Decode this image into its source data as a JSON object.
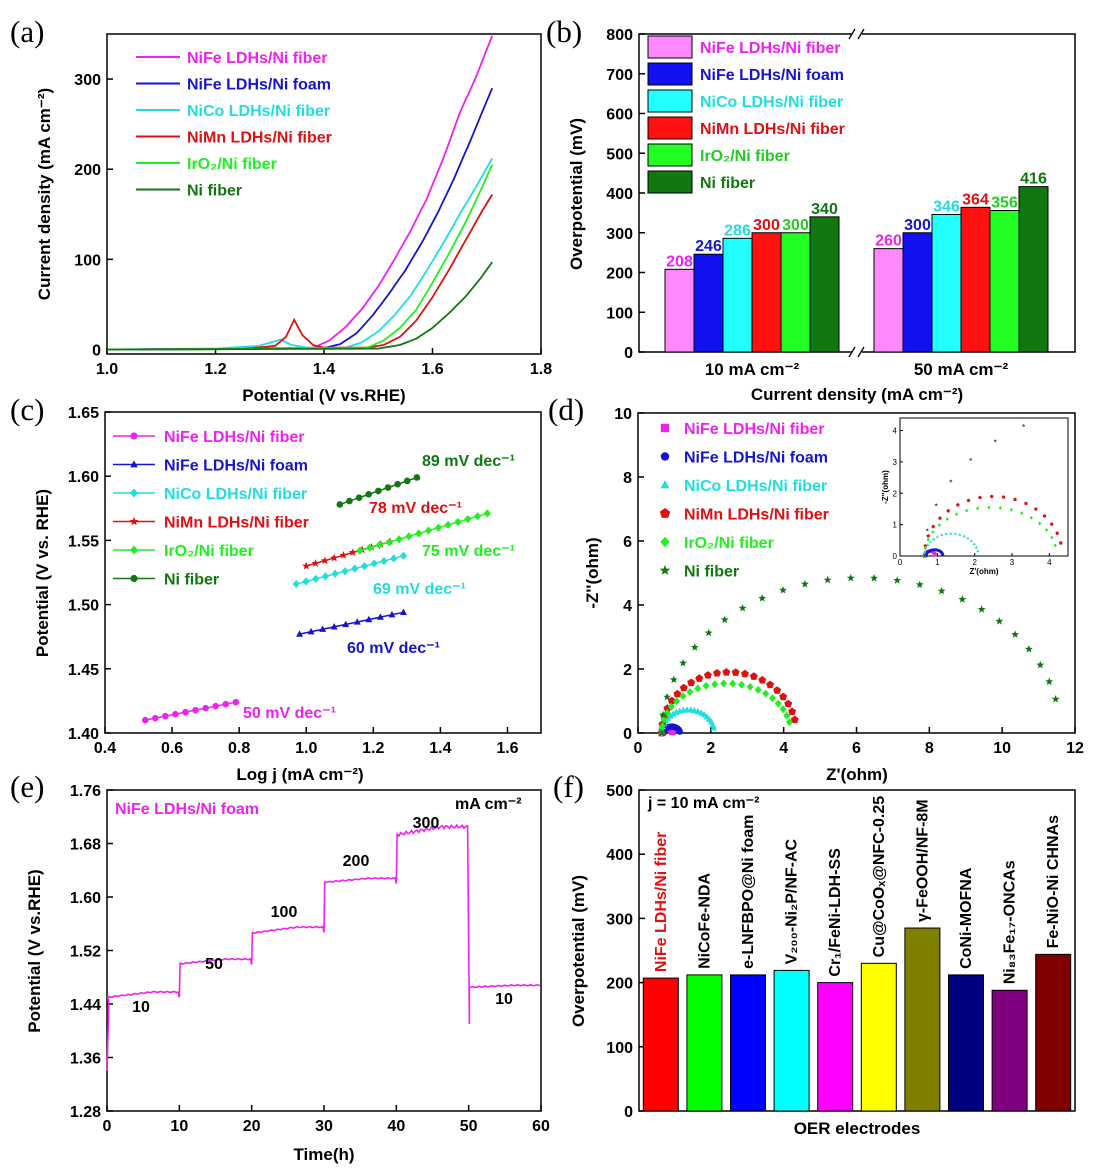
{
  "panel_labels": [
    "(a)",
    "(b)",
    "(c)",
    "(d)",
    "(e)",
    "(f)"
  ],
  "chart_data": [
    {
      "panel": "(a)",
      "type": "line",
      "xlabel": "Potential (V vs.RHE)",
      "ylabel": "Current density (mA cm⁻²)",
      "xlim": [
        1.0,
        1.8
      ],
      "ylim": [
        -5,
        350
      ],
      "xticks": [
        "1.0",
        "1.2",
        "1.4",
        "1.6",
        "1.8"
      ],
      "yticks": [
        "0",
        "100",
        "200",
        "300"
      ],
      "legend_position": "top-left",
      "series": [
        {
          "name": "NiFe LDHs/Ni fiber",
          "color": "#ee22ee",
          "x": [
            1.0,
            1.2,
            1.38,
            1.41,
            1.44,
            1.47,
            1.5,
            1.53,
            1.56,
            1.59,
            1.62,
            1.65,
            1.68,
            1.71
          ],
          "y": [
            0,
            0.5,
            2,
            10,
            25,
            45,
            70,
            100,
            132,
            168,
            212,
            262,
            302,
            348
          ]
        },
        {
          "name": "NiFe LDHs/Ni foam",
          "color": "#1515cc",
          "x": [
            1.0,
            1.2,
            1.4,
            1.43,
            1.46,
            1.49,
            1.52,
            1.55,
            1.58,
            1.61,
            1.64,
            1.67,
            1.71
          ],
          "y": [
            0,
            0.5,
            1.5,
            6,
            18,
            38,
            62,
            88,
            118,
            152,
            190,
            232,
            290
          ]
        },
        {
          "name": "NiCo LDHs/Ni fiber",
          "color": "#22dddd",
          "x": [
            1.0,
            1.2,
            1.28,
            1.32,
            1.34,
            1.37,
            1.44,
            1.47,
            1.5,
            1.53,
            1.56,
            1.59,
            1.62,
            1.65,
            1.68,
            1.71
          ],
          "y": [
            0,
            1,
            4,
            11,
            5,
            2,
            2,
            8,
            20,
            38,
            60,
            88,
            118,
            150,
            180,
            212
          ]
        },
        {
          "name": "NiMn LDHs/Ni fiber",
          "color": "#dd1111",
          "x": [
            1.0,
            1.25,
            1.31,
            1.33,
            1.345,
            1.36,
            1.38,
            1.4,
            1.48,
            1.51,
            1.54,
            1.57,
            1.6,
            1.63,
            1.66,
            1.69,
            1.71
          ],
          "y": [
            0,
            0.5,
            4,
            14,
            33,
            16,
            5,
            2,
            2,
            5,
            14,
            32,
            58,
            88,
            120,
            152,
            172
          ]
        },
        {
          "name": "IrO₂/Ni fiber",
          "color": "#22ee22",
          "x": [
            1.0,
            1.2,
            1.48,
            1.51,
            1.54,
            1.57,
            1.6,
            1.63,
            1.66,
            1.69,
            1.71
          ],
          "y": [
            0,
            0.3,
            2,
            10,
            24,
            44,
            74,
            106,
            140,
            178,
            205
          ]
        },
        {
          "name": "Ni fiber",
          "color": "#117711",
          "x": [
            1.0,
            1.2,
            1.5,
            1.54,
            1.57,
            1.6,
            1.63,
            1.66,
            1.69,
            1.71
          ],
          "y": [
            0,
            0.3,
            1,
            5,
            12,
            24,
            40,
            58,
            80,
            97
          ]
        }
      ]
    },
    {
      "panel": "(b)",
      "type": "bar",
      "xlabel": "Current density (mA cm⁻²)",
      "ylabel": "Overpotential (mV)",
      "ylim": [
        0,
        800
      ],
      "yticks": [
        "0",
        "100",
        "200",
        "300",
        "400",
        "500",
        "600",
        "700",
        "800"
      ],
      "categories": [
        "10 mA cm⁻²",
        "50 mA cm⁻²"
      ],
      "legend_position": "top-left",
      "series": [
        {
          "name": "NiFe LDHs/Ni fiber",
          "color": "#ff88ff",
          "values": [
            208,
            260
          ],
          "labels": [
            "208",
            "260"
          ]
        },
        {
          "name": "NiFe LDHs/Ni foam",
          "color": "#1111ee",
          "values": [
            246,
            300
          ],
          "labels": [
            "246",
            "300"
          ]
        },
        {
          "name": "NiCo LDHs/Ni fiber",
          "color": "#22ffff",
          "values": [
            286,
            346
          ],
          "labels": [
            "286",
            "346"
          ]
        },
        {
          "name": "NiMn LDHs/Ni fiber",
          "color": "#ff1111",
          "values": [
            300,
            364
          ],
          "labels": [
            "300",
            "364"
          ]
        },
        {
          "name": "IrO₂/Ni fiber",
          "color": "#22ff22",
          "values": [
            300,
            356
          ],
          "labels": [
            "300",
            "356"
          ]
        },
        {
          "name": "Ni fiber",
          "color": "#117711",
          "values": [
            340,
            416
          ],
          "labels": [
            "340",
            "416"
          ]
        }
      ],
      "label_colors": [
        "#ee22ee",
        "#1515cc",
        "#22dddd",
        "#dd1111",
        "#22cc22",
        "#117711"
      ]
    },
    {
      "panel": "(c)",
      "type": "scatter",
      "xlabel": "Log j (mA cm⁻²)",
      "ylabel": "Potential (V vs. RHE)",
      "xlim": [
        0.4,
        1.7
      ],
      "ylim": [
        1.4,
        1.65
      ],
      "xticks": [
        "0.4",
        "0.6",
        "0.8",
        "1.0",
        "1.2",
        "1.4",
        "1.6"
      ],
      "yticks": [
        "1.40",
        "1.45",
        "1.50",
        "1.55",
        "1.60",
        "1.65"
      ],
      "legend_position": "left",
      "series": [
        {
          "name": "NiFe LDHs/Ni fiber",
          "color": "#ee22ee",
          "marker": "circle",
          "x_range": [
            0.52,
            0.79
          ],
          "y_range": [
            1.41,
            1.424
          ],
          "n_points": 10,
          "slope_label": "50 mV dec⁻¹"
        },
        {
          "name": "NiFe LDHs/Ni foam",
          "color": "#1515cc",
          "marker": "triangle",
          "x_range": [
            0.98,
            1.29
          ],
          "y_range": [
            1.477,
            1.494
          ],
          "n_points": 10,
          "slope_label": "60 mV dec⁻¹"
        },
        {
          "name": "NiCo LDHs/Ni fiber",
          "color": "#22dddd",
          "marker": "diamond",
          "x_range": [
            0.97,
            1.29
          ],
          "y_range": [
            1.516,
            1.538
          ],
          "n_points": 12,
          "slope_label": "69 mV dec⁻¹"
        },
        {
          "name": "NiMn LDHs/Ni fiber",
          "color": "#dd1111",
          "marker": "star",
          "x_range": [
            1.0,
            1.25
          ],
          "y_range": [
            1.53,
            1.549
          ],
          "n_points": 10,
          "slope_label": "78 mV dec⁻¹"
        },
        {
          "name": "IrO₂/Ni fiber",
          "color": "#22ee22",
          "marker": "diamond",
          "x_range": [
            1.16,
            1.54
          ],
          "y_range": [
            1.542,
            1.571
          ],
          "n_points": 14,
          "slope_label": "75 mV dec⁻¹"
        },
        {
          "name": "Ni fiber",
          "color": "#117711",
          "marker": "circle",
          "x_range": [
            1.1,
            1.33
          ],
          "y_range": [
            1.578,
            1.599
          ],
          "n_points": 9,
          "slope_label": "89 mV dec⁻¹"
        }
      ]
    },
    {
      "panel": "(d)",
      "type": "scatter",
      "xlabel": "Z'(ohm)",
      "ylabel": "-Z''(ohm)",
      "xlim": [
        0,
        12
      ],
      "ylim": [
        0,
        10
      ],
      "xticks": [
        "0",
        "2",
        "4",
        "6",
        "8",
        "10",
        "12"
      ],
      "yticks": [
        "0",
        "2",
        "4",
        "6",
        "8",
        "10"
      ],
      "legend_position": "top-left",
      "series": [
        {
          "name": "NiFe LDHs/Ni fiber",
          "color": "#ee22ee",
          "marker": "square",
          "arc_start": 0.65,
          "arc_end": 0.95,
          "arc_height": 0.15
        },
        {
          "name": "NiFe LDHs/Ni foam",
          "color": "#1515cc",
          "marker": "circle",
          "arc_start": 0.7,
          "arc_end": 1.15,
          "arc_height": 0.2
        },
        {
          "name": "NiCo LDHs/Ni fiber",
          "color": "#22dddd",
          "marker": "triangle",
          "arc_start": 0.65,
          "arc_end": 2.1,
          "arc_height": 0.72
        },
        {
          "name": "NiMn LDHs/Ni fiber",
          "color": "#dd1111",
          "marker": "pentagon",
          "arc_start": 0.65,
          "arc_end": 4.35,
          "arc_height": 1.9
        },
        {
          "name": "IrO₂/Ni fiber",
          "color": "#22ee22",
          "marker": "diamond",
          "arc_start": 0.65,
          "arc_end": 4.2,
          "arc_height": 1.55
        },
        {
          "name": "Ni fiber",
          "color": "#117711",
          "marker": "star",
          "arc_start": 0.65,
          "arc_end": 11.6,
          "arc_height": 4.85
        }
      ],
      "inset": {
        "xlabel": "Z'(ohm)",
        "ylabel": "-Z''(ohm)",
        "xlim": [
          0,
          4.5
        ],
        "ylim": [
          0,
          4.4
        ],
        "xticks": [
          "0",
          "1",
          "2",
          "3",
          "4"
        ],
        "yticks": [
          "0",
          "1",
          "2",
          "3",
          "4"
        ]
      }
    },
    {
      "panel": "(e)",
      "type": "line",
      "title": "NiFe LDHs/Ni foam",
      "xlabel": "Time(h)",
      "ylabel": "Potential (V vs.RHE)",
      "xlim": [
        0,
        60
      ],
      "ylim": [
        1.28,
        1.76
      ],
      "xticks": [
        "0",
        "10",
        "20",
        "30",
        "40",
        "50",
        "60"
      ],
      "yticks": [
        "1.28",
        "1.36",
        "1.44",
        "1.52",
        "1.60",
        "1.68",
        "1.76"
      ],
      "color": "#ee22ee",
      "steps": [
        {
          "label": "10",
          "t_start": 0,
          "t_end": 10,
          "start": 1.45,
          "end": 1.458
        },
        {
          "label": "50",
          "t_start": 10,
          "t_end": 20,
          "start": 1.5,
          "end": 1.507
        },
        {
          "label": "100",
          "t_start": 20,
          "t_end": 30,
          "start": 1.546,
          "end": 1.555
        },
        {
          "label": "200",
          "t_start": 30,
          "t_end": 40,
          "start": 1.622,
          "end": 1.628
        },
        {
          "label": "300",
          "t_start": 40,
          "t_end": 50,
          "start": 1.693,
          "end": 1.705
        },
        {
          "label": "10",
          "t_start": 50,
          "t_end": 60,
          "start": 1.465,
          "end": 1.468
        }
      ],
      "unit_label": "mA cm⁻²"
    },
    {
      "panel": "(f)",
      "type": "bar",
      "annotation": "j = 10 mA cm⁻²",
      "xlabel": "OER electrodes",
      "ylabel": "Overpotential (mV)",
      "ylim": [
        0,
        500
      ],
      "yticks": [
        "0",
        "100",
        "200",
        "300",
        "400",
        "500"
      ],
      "categories": [
        "NiFe LDHs/Ni fiber",
        "NiCoFe-NDA",
        "e-LNFBPO@Ni foam",
        "V₂₀₀-Ni₂P/NF-AC",
        "Cr₁/FeNi-LDH-SS",
        "Cu@CoOₓ@NFC-0.25",
        "γ-FeOOH/NF-8M",
        "CoNi-MOFNA",
        "Ni₈₃Fe₁₇-ONCAs",
        "Fe-NiO-Ni CHNAs"
      ],
      "values": [
        207,
        212,
        212,
        219,
        200,
        230,
        285,
        212,
        188,
        244
      ],
      "colors": [
        "#ff0000",
        "#00ff00",
        "#0000ff",
        "#00ffff",
        "#ff00ff",
        "#ffff00",
        "#808000",
        "#000080",
        "#800080",
        "#800000"
      ],
      "label_colors": [
        "#dd1111",
        "#000000",
        "#000000",
        "#000000",
        "#000000",
        "#000000",
        "#000000",
        "#000000",
        "#000000",
        "#000000"
      ]
    }
  ]
}
